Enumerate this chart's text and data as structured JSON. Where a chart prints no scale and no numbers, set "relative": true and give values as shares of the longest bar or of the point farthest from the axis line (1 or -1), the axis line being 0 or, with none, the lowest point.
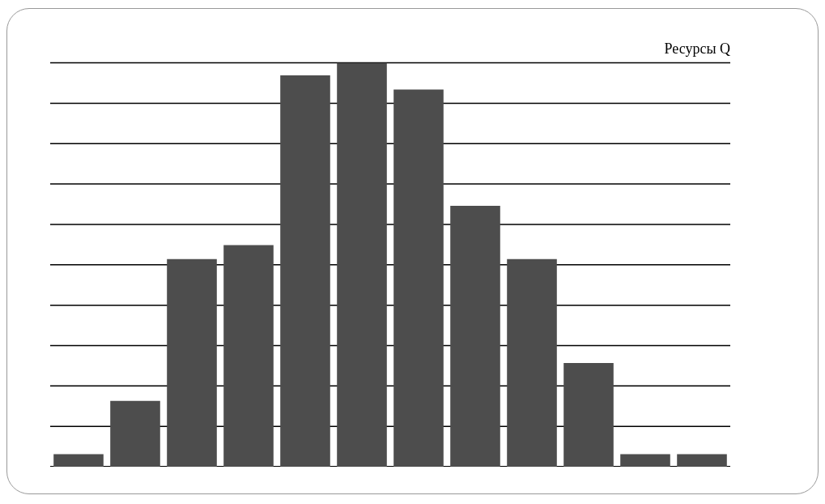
{
  "chart_data": {
    "type": "bar",
    "title": "Ресурсы Q",
    "relative": true,
    "grid": "y",
    "color": "#4d4d4d",
    "categories": [
      null,
      null,
      null,
      null,
      null,
      null,
      null,
      null,
      null,
      null,
      null,
      null
    ],
    "values": [
      0.031,
      0.163,
      0.514,
      0.549,
      0.969,
      1,
      0.934,
      0.646,
      0.514,
      0.257,
      0.031,
      0.031
    ]
  }
}
